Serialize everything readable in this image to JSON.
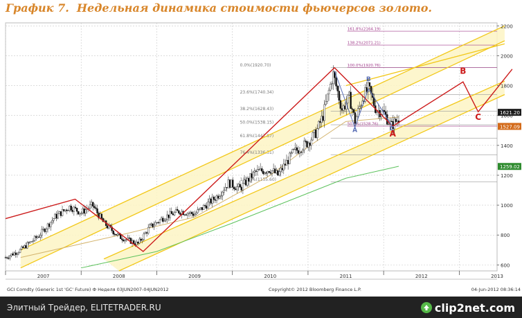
{
  "header": {
    "title_prefix": "График 7.",
    "title_text": "Недельная динамика стоимости фьючерсов золото."
  },
  "chart_data": {
    "type": "line",
    "subtype": "weekly-candlestick-with-trendlines",
    "y_axis": {
      "position": "right",
      "ticks": [
        "2200",
        "2000",
        "1800",
        "1600",
        "1400",
        "1200",
        "1000",
        "800",
        "600"
      ],
      "ylim": [
        560,
        2220
      ]
    },
    "x_axis": {
      "ticks": [
        "2007",
        "2008",
        "2009",
        "2010",
        "2011",
        "2012",
        "2013"
      ],
      "xlim": [
        2007.0,
        2013.5
      ]
    },
    "price_path": [
      {
        "x": 2007.0,
        "y": 650
      },
      {
        "x": 2007.2,
        "y": 700
      },
      {
        "x": 2007.45,
        "y": 800
      },
      {
        "x": 2007.65,
        "y": 920
      },
      {
        "x": 2007.85,
        "y": 990
      },
      {
        "x": 2008.0,
        "y": 950
      },
      {
        "x": 2008.15,
        "y": 1000
      },
      {
        "x": 2008.3,
        "y": 880
      },
      {
        "x": 2008.5,
        "y": 790
      },
      {
        "x": 2008.75,
        "y": 740
      },
      {
        "x": 2008.9,
        "y": 850
      },
      {
        "x": 2009.1,
        "y": 920
      },
      {
        "x": 2009.3,
        "y": 960
      },
      {
        "x": 2009.5,
        "y": 940
      },
      {
        "x": 2009.8,
        "y": 1060
      },
      {
        "x": 2009.95,
        "y": 1150
      },
      {
        "x": 2010.1,
        "y": 1110
      },
      {
        "x": 2010.3,
        "y": 1220
      },
      {
        "x": 2010.5,
        "y": 1240
      },
      {
        "x": 2010.6,
        "y": 1200
      },
      {
        "x": 2010.8,
        "y": 1350
      },
      {
        "x": 2011.0,
        "y": 1420
      },
      {
        "x": 2011.1,
        "y": 1480
      },
      {
        "x": 2011.2,
        "y": 1600
      },
      {
        "x": 2011.33,
        "y": 1880
      },
      {
        "x": 2011.45,
        "y": 1640
      },
      {
        "x": 2011.55,
        "y": 1720
      },
      {
        "x": 2011.62,
        "y": 1560
      },
      {
        "x": 2011.72,
        "y": 1720
      },
      {
        "x": 2011.8,
        "y": 1780
      },
      {
        "x": 2011.9,
        "y": 1640
      },
      {
        "x": 2012.0,
        "y": 1620
      },
      {
        "x": 2012.1,
        "y": 1530
      },
      {
        "x": 2012.2,
        "y": 1580
      }
    ],
    "wave_path": [
      {
        "x": 2007.0,
        "y": 910
      },
      {
        "x": 2007.92,
        "y": 1040
      },
      {
        "x": 2008.82,
        "y": 690
      },
      {
        "x": 2011.35,
        "y": 1920
      },
      {
        "x": 2012.12,
        "y": 1528
      },
      {
        "x": 2013.05,
        "y": 1825
      },
      {
        "x": 2013.25,
        "y": 1625
      },
      {
        "x": 2013.7,
        "y": 1910
      }
    ],
    "moving_averages": [
      {
        "name": "MA-short",
        "color": "#d4b46e",
        "points": [
          [
            2007.2,
            650
          ],
          [
            2008.6,
            810
          ],
          [
            2009.5,
            920
          ],
          [
            2010.5,
            1200
          ],
          [
            2011.0,
            1390
          ],
          [
            2011.5,
            1560
          ],
          [
            2012.2,
            1590
          ]
        ]
      },
      {
        "name": "MA-long",
        "color": "#5cc25c",
        "points": [
          [
            2008.0,
            580
          ],
          [
            2009.0,
            690
          ],
          [
            2010.0,
            880
          ],
          [
            2010.8,
            1040
          ],
          [
            2011.5,
            1180
          ],
          [
            2012.2,
            1260
          ]
        ]
      }
    ],
    "channel_lines": [
      {
        "from": [
          2007.2,
          700
        ],
        "to": [
          2013.6,
          2200
        ]
      },
      {
        "from": [
          2007.2,
          580
        ],
        "to": [
          2013.6,
          2100
        ]
      },
      {
        "from": [
          2008.3,
          640
        ],
        "to": [
          2013.6,
          1830
        ]
      },
      {
        "from": [
          2008.5,
          560
        ],
        "to": [
          2013.6,
          1740
        ]
      },
      {
        "from": [
          2011.5,
          1800
        ],
        "to": [
          2013.6,
          2080
        ]
      }
    ],
    "fib_levels": [
      {
        "label": "0.0%(1920.70)",
        "value": 1920.7
      },
      {
        "label": "23.6%(1740.34)",
        "value": 1740.34
      },
      {
        "label": "38.2%(1628.43)",
        "value": 1628.43
      },
      {
        "label": "50.0%(1538.15)",
        "value": 1538.15
      },
      {
        "label": "61.8%(1447.87)",
        "value": 1447.87
      },
      {
        "label": "76.4%(1336.31)",
        "value": 1336.31
      },
      {
        "label": "100.0%(1155.60)",
        "value": 1155.6
      }
    ],
    "fib_ext_levels": [
      {
        "label": "161.8%(2164.19)",
        "value": 2164.19
      },
      {
        "label": "138.2%(2071.21)",
        "value": 2071.21
      },
      {
        "label": "100.0%(1920.76)",
        "value": 1920.76
      },
      {
        "label": "50.0%(1528.76)",
        "value": 1528.76
      }
    ],
    "price_tags": [
      {
        "label": "1621.20",
        "value": 1621.2,
        "color": "#1a1a1a"
      },
      {
        "label": "1527.09",
        "value": 1527.09,
        "color": "#d36a19"
      },
      {
        "label": "1259.02",
        "value": 1259.02,
        "color": "#2e8b2e"
      }
    ],
    "wave_labels": [
      {
        "text": "A",
        "x": 2011.62,
        "y": 1490,
        "color": "#5a6fb5"
      },
      {
        "text": "B",
        "x": 2011.8,
        "y": 1830,
        "color": "#5a6fb5"
      },
      {
        "text": "C",
        "x": 2012.11,
        "y": 1500,
        "color": "#5a6fb5"
      },
      {
        "text": "A",
        "x": 2012.12,
        "y": 1460,
        "color": "#cc1b1b"
      },
      {
        "text": "B",
        "x": 2013.05,
        "y": 1880,
        "color": "#cc1b1b"
      },
      {
        "text": "C",
        "x": 2013.25,
        "y": 1570,
        "color": "#cc1b1b"
      }
    ],
    "source_left": "GCI Comdty (Generic 1st 'GC' Future) Ф Неделя 03JUN2007-04JUN2012",
    "source_center": "Copyright© 2012 Bloomberg Finance L.P.",
    "source_right": "04-Jun-2012 08:36:14",
    "colors": {
      "grid": "#c8c8c8",
      "channel": "#f2c81a",
      "channel_fill": "#fdf4c4",
      "wave": "#cc1b1b",
      "fib": "#999999",
      "fib_ext": "#a03a8a",
      "candle": "#111111"
    }
  },
  "footer": {
    "left_text": "Элитный Трейдер, ELITETRADER.RU",
    "logo_text": "clip2net.com",
    "logo_icon": "clip2net-arrow-icon"
  }
}
